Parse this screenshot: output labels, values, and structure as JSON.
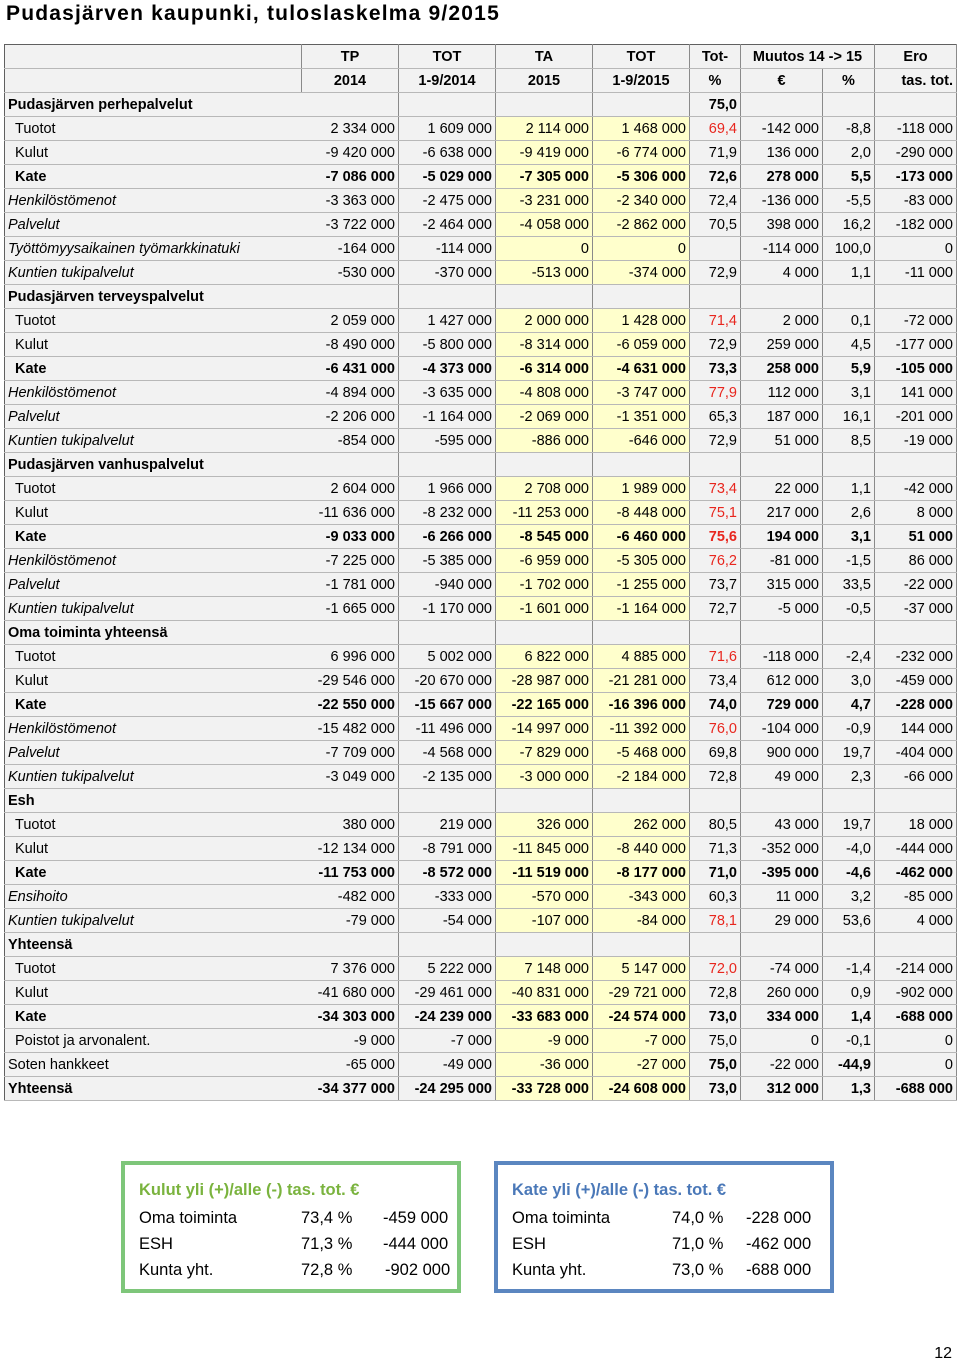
{
  "title": "Pudasjärven kaupunki, tuloslaskelma 9/2015",
  "headers": {
    "row1": [
      "TP",
      "TOT",
      "TA",
      "TOT",
      "Tot-",
      "Muutos 14 -> 15",
      "",
      "Ero"
    ],
    "row2": [
      "2014",
      "1-9/2014",
      "2015",
      "1-9/2015",
      "%",
      "€",
      "%",
      "tas. tot."
    ]
  },
  "sections": [
    {
      "title": "Pudasjärven perhepalvelut",
      "pct": "75,0",
      "pct_red": false,
      "rows": [
        {
          "label": "Tuotot",
          "style": "ind",
          "v": [
            "2 334 000",
            "1 609 000",
            "2 114 000",
            "1 468 000",
            "69,4",
            "-142 000",
            "-8,8",
            "-118 000"
          ],
          "red": true
        },
        {
          "label": "Kulut",
          "style": "ind",
          "v": [
            "-9 420 000",
            "-6 638 000",
            "-9 419 000",
            "-6 774 000",
            "71,9",
            "136 000",
            "2,0",
            "-290 000"
          ],
          "red": false
        },
        {
          "label": "Kate",
          "style": "bold",
          "v": [
            "-7 086 000",
            "-5 029 000",
            "-7 305 000",
            "-5 306 000",
            "72,6",
            "278 000",
            "5,5",
            "-173 000"
          ],
          "red": false
        },
        {
          "label": "Henkilöstömenot",
          "style": "italic",
          "v": [
            "-3 363 000",
            "-2 475 000",
            "-3 231 000",
            "-2 340 000",
            "72,4",
            "-136 000",
            "-5,5",
            "-83 000"
          ],
          "red": false
        },
        {
          "label": "Palvelut",
          "style": "italic",
          "v": [
            "-3 722 000",
            "-2 464 000",
            "-4 058 000",
            "-2 862 000",
            "70,5",
            "398 000",
            "16,2",
            "-182 000"
          ],
          "red": false
        },
        {
          "label": "Työttömyysaikainen työmarkkinatuki",
          "style": "italic",
          "v": [
            "-164 000",
            "-114 000",
            "0",
            "0",
            "",
            "-114 000",
            "100,0",
            "0"
          ],
          "red": false
        },
        {
          "label": "Kuntien tukipalvelut",
          "style": "italic",
          "v": [
            "-530 000",
            "-370 000",
            "-513 000",
            "-374 000",
            "72,9",
            "4 000",
            "1,1",
            "-11 000"
          ],
          "red": false
        }
      ]
    },
    {
      "title": "Pudasjärven terveyspalvelut",
      "pct": "",
      "pct_red": false,
      "rows": [
        {
          "label": "Tuotot",
          "style": "ind",
          "v": [
            "2 059 000",
            "1 427 000",
            "2 000 000",
            "1 428 000",
            "71,4",
            "2 000",
            "0,1",
            "-72 000"
          ],
          "red": true
        },
        {
          "label": "Kulut",
          "style": "ind",
          "v": [
            "-8 490 000",
            "-5 800 000",
            "-8 314 000",
            "-6 059 000",
            "72,9",
            "259 000",
            "4,5",
            "-177 000"
          ],
          "red": false
        },
        {
          "label": "Kate",
          "style": "bold",
          "v": [
            "-6 431 000",
            "-4 373 000",
            "-6 314 000",
            "-4 631 000",
            "73,3",
            "258 000",
            "5,9",
            "-105 000"
          ],
          "red": false
        },
        {
          "label": "Henkilöstömenot",
          "style": "italic",
          "v": [
            "-4 894 000",
            "-3 635 000",
            "-4 808 000",
            "-3 747 000",
            "77,9",
            "112 000",
            "3,1",
            "141 000"
          ],
          "red": true
        },
        {
          "label": "Palvelut",
          "style": "italic",
          "v": [
            "-2 206 000",
            "-1 164 000",
            "-2 069 000",
            "-1 351 000",
            "65,3",
            "187 000",
            "16,1",
            "-201 000"
          ],
          "red": false
        },
        {
          "label": "Kuntien tukipalvelut",
          "style": "italic",
          "v": [
            "-854 000",
            "-595 000",
            "-886 000",
            "-646 000",
            "72,9",
            "51 000",
            "8,5",
            "-19 000"
          ],
          "red": false
        }
      ]
    },
    {
      "title": "Pudasjärven vanhuspalvelut",
      "pct": "",
      "pct_red": false,
      "rows": [
        {
          "label": "Tuotot",
          "style": "ind",
          "v": [
            "2 604 000",
            "1 966 000",
            "2 708 000",
            "1 989 000",
            "73,4",
            "22 000",
            "1,1",
            "-42 000"
          ],
          "red": true
        },
        {
          "label": "Kulut",
          "style": "ind",
          "v": [
            "-11 636 000",
            "-8 232 000",
            "-11 253 000",
            "-8 448 000",
            "75,1",
            "217 000",
            "2,6",
            "8 000"
          ],
          "red": true
        },
        {
          "label": "Kate",
          "style": "bold",
          "v": [
            "-9 033 000",
            "-6 266 000",
            "-8 545 000",
            "-6 460 000",
            "75,6",
            "194 000",
            "3,1",
            "51 000"
          ],
          "red": true
        },
        {
          "label": "Henkilöstömenot",
          "style": "italic",
          "v": [
            "-7 225 000",
            "-5 385 000",
            "-6 959 000",
            "-5 305 000",
            "76,2",
            "-81 000",
            "-1,5",
            "86 000"
          ],
          "red": true
        },
        {
          "label": "Palvelut",
          "style": "italic",
          "v": [
            "-1 781 000",
            "-940 000",
            "-1 702 000",
            "-1 255 000",
            "73,7",
            "315 000",
            "33,5",
            "-22 000"
          ],
          "red": false
        },
        {
          "label": "Kuntien tukipalvelut",
          "style": "italic",
          "v": [
            "-1 665 000",
            "-1 170 000",
            "-1 601 000",
            "-1 164 000",
            "72,7",
            "-5 000",
            "-0,5",
            "-37 000"
          ],
          "red": false
        }
      ]
    },
    {
      "title": "Oma toiminta yhteensä",
      "pct": "",
      "pct_red": false,
      "rows": [
        {
          "label": "Tuotot",
          "style": "ind",
          "v": [
            "6 996 000",
            "5 002 000",
            "6 822 000",
            "4 885 000",
            "71,6",
            "-118 000",
            "-2,4",
            "-232 000"
          ],
          "red": true
        },
        {
          "label": "Kulut",
          "style": "ind",
          "v": [
            "-29 546 000",
            "-20 670 000",
            "-28 987 000",
            "-21 281 000",
            "73,4",
            "612 000",
            "3,0",
            "-459 000"
          ],
          "red": false
        },
        {
          "label": "Kate",
          "style": "bold",
          "v": [
            "-22 550 000",
            "-15 667 000",
            "-22 165 000",
            "-16 396 000",
            "74,0",
            "729 000",
            "4,7",
            "-228 000"
          ],
          "red": false
        },
        {
          "label": "Henkilöstömenot",
          "style": "italic",
          "v": [
            "-15 482 000",
            "-11 496 000",
            "-14 997 000",
            "-11 392 000",
            "76,0",
            "-104 000",
            "-0,9",
            "144 000"
          ],
          "red": true
        },
        {
          "label": "Palvelut",
          "style": "italic",
          "v": [
            "-7 709 000",
            "-4 568 000",
            "-7 829 000",
            "-5 468 000",
            "69,8",
            "900 000",
            "19,7",
            "-404 000"
          ],
          "red": false
        },
        {
          "label": "Kuntien tukipalvelut",
          "style": "italic",
          "v": [
            "-3 049 000",
            "-2 135 000",
            "-3 000 000",
            "-2 184 000",
            "72,8",
            "49 000",
            "2,3",
            "-66 000"
          ],
          "red": false
        }
      ]
    },
    {
      "title": "Esh",
      "pct": "",
      "pct_red": false,
      "rows": [
        {
          "label": "Tuotot",
          "style": "ind",
          "v": [
            "380 000",
            "219 000",
            "326 000",
            "262 000",
            "80,5",
            "43 000",
            "19,7",
            "18 000"
          ],
          "red": false
        },
        {
          "label": "Kulut",
          "style": "ind",
          "v": [
            "-12 134 000",
            "-8 791 000",
            "-11 845 000",
            "-8 440 000",
            "71,3",
            "-352 000",
            "-4,0",
            "-444 000"
          ],
          "red": false
        },
        {
          "label": "Kate",
          "style": "bold",
          "v": [
            "-11 753 000",
            "-8 572 000",
            "-11 519 000",
            "-8 177 000",
            "71,0",
            "-395 000",
            "-4,6",
            "-462 000"
          ],
          "red": false
        },
        {
          "label": "Ensihoito",
          "style": "italic",
          "v": [
            "-482 000",
            "-333 000",
            "-570 000",
            "-343 000",
            "60,3",
            "11 000",
            "3,2",
            "-85 000"
          ],
          "red": false
        },
        {
          "label": "Kuntien tukipalvelut",
          "style": "italic",
          "v": [
            "-79 000",
            "-54 000",
            "-107 000",
            "-84 000",
            "78,1",
            "29 000",
            "53,6",
            "4 000"
          ],
          "red": true
        }
      ]
    },
    {
      "title": "Yhteensä",
      "pct": "",
      "pct_red": false,
      "rows": [
        {
          "label": "Tuotot",
          "style": "ind",
          "v": [
            "7 376 000",
            "5 222 000",
            "7 148 000",
            "5 147 000",
            "72,0",
            "-74 000",
            "-1,4",
            "-214 000"
          ],
          "red": true
        },
        {
          "label": "Kulut",
          "style": "ind",
          "v": [
            "-41 680 000",
            "-29 461 000",
            "-40 831 000",
            "-29 721 000",
            "72,8",
            "260 000",
            "0,9",
            "-902 000"
          ],
          "red": false
        },
        {
          "label": "Kate",
          "style": "bold",
          "v": [
            "-34 303 000",
            "-24 239 000",
            "-33 683 000",
            "-24 574 000",
            "73,0",
            "334 000",
            "1,4",
            "-688 000"
          ],
          "red": false
        },
        {
          "label": "Poistot ja arvonalent.",
          "style": "ind",
          "v": [
            "-9 000",
            "-7 000",
            "-9 000",
            "-7 000",
            "75,0",
            "0",
            "-0,1",
            "0"
          ],
          "red": false
        }
      ]
    }
  ],
  "footer_rows": [
    {
      "label": "Soten hankkeet",
      "style": "normal",
      "v": [
        "-65 000",
        "-49 000",
        "-36 000",
        "-27 000",
        "75,0",
        "-22 000",
        "-44,9",
        "0"
      ],
      "bold_cols": [
        4,
        6
      ]
    },
    {
      "label": "Yhteensä",
      "style": "bold",
      "v": [
        "-34 377 000",
        "-24 295 000",
        "-33 728 000",
        "-24 608 000",
        "73,0",
        "312 000",
        "1,3",
        "-688 000"
      ],
      "bold_cols": []
    }
  ],
  "summary_boxes": [
    {
      "title": "Kulut yli (+)/alle (-) tas. tot. €",
      "rows": [
        {
          "name": "Oma toiminta",
          "pct": "73,4 %",
          "eur": "-459 000"
        },
        {
          "name": "ESH",
          "pct": "71,3 %",
          "eur": "-444 000"
        },
        {
          "name": "Kunta yht.",
          "pct": "72,8 %",
          "eur": "-902 000"
        }
      ]
    },
    {
      "title": "Kate yli (+)/alle (-) tas. tot. €",
      "rows": [
        {
          "name": "Oma toiminta",
          "pct": "74,0 %",
          "eur": "-228 000"
        },
        {
          "name": "ESH",
          "pct": "71,0 %",
          "eur": "-462 000"
        },
        {
          "name": "Kunta yht.",
          "pct": "73,0 %",
          "eur": "-688 000"
        }
      ]
    }
  ],
  "page_number": "12",
  "colors": {
    "accent_red": "#e8261e",
    "yellow_fill": "#ffffcc",
    "green_border": "#7ec67a",
    "blue_border": "#5b86c0"
  }
}
